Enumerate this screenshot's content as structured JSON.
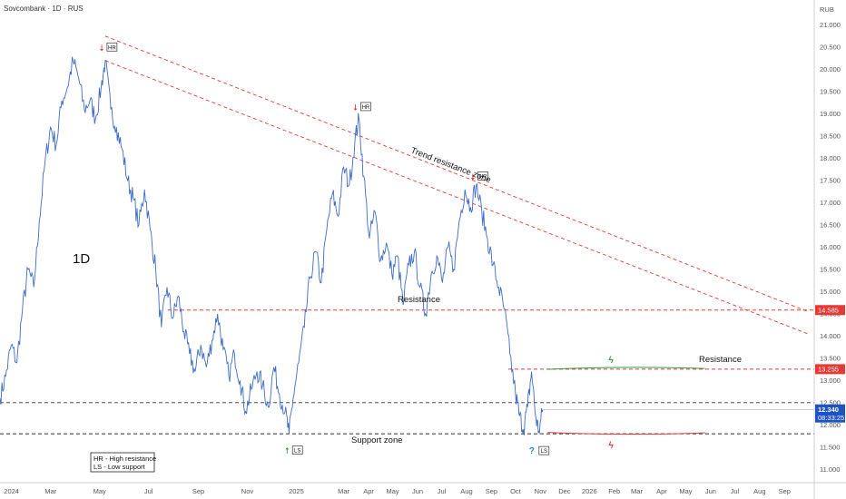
{
  "header": {
    "title": "Sovcombank · 1D · RUS",
    "currency": "RUB"
  },
  "timeframe_label": "1D",
  "legend": {
    "hr": "HR - High resistance",
    "ls": "LS - Low support"
  },
  "markers": {
    "hr_label": "HR",
    "ls_label": "LS",
    "hr_arrow": "⭣",
    "ls_arrow": "⭡",
    "question": "?",
    "bolt": "ϟ"
  },
  "annotations": {
    "trend_zone": "Trend resistance zone",
    "resistance_mid": "Resistance",
    "resistance_right": "Resistance",
    "support_zone": "Support zone"
  },
  "price_tags": {
    "level_14585": "14.585",
    "level_13255": "13.255",
    "current_price": "12.340",
    "countdown": "08:33:25"
  },
  "colors": {
    "price_line": "#3f6cc6",
    "resistance_dashed": "#e53935",
    "support_dashed": "#333333",
    "green_arrow": "#2e9e40",
    "red_arrow": "#e53935",
    "current_price_tag": "#1e53c4",
    "question_mark": "#1e88e5"
  },
  "chart_data": {
    "type": "line",
    "title": "Sovcombank · 1D · RUS",
    "ylabel": "RUB",
    "ylim": [
      10.7,
      21.4
    ],
    "y_ticks": [
      11.0,
      11.5,
      12.0,
      12.5,
      13.0,
      13.5,
      14.0,
      14.5,
      15.0,
      15.5,
      16.0,
      16.5,
      17.0,
      17.5,
      18.0,
      18.5,
      19.0,
      19.5,
      20.0,
      20.5,
      21.0
    ],
    "y_tick_labels": [
      "11.000",
      "11.500",
      "12.000",
      "12.500",
      "13.000",
      "13.500",
      "14.000",
      "14.500",
      "15.000",
      "15.500",
      "16.000",
      "16.500",
      "17.000",
      "17.500",
      "18.000",
      "18.500",
      "19.000",
      "19.500",
      "20.000",
      "20.500",
      "21.000"
    ],
    "x_tick_labels": [
      "2024",
      "Mar",
      "May",
      "Jul",
      "Sep",
      "Nov",
      "2025",
      "Mar",
      "Apr",
      "May",
      "Jun",
      "Jul",
      "Aug",
      "Sep",
      "Oct",
      "Nov",
      "Dec",
      "2026",
      "Feb",
      "Mar",
      "Apr",
      "May",
      "Jun",
      "Jul",
      "Aug",
      "Sep"
    ],
    "x_tick_dates": [
      "2024-01-01",
      "2024-03-01",
      "2024-05-01",
      "2024-07-01",
      "2024-09-01",
      "2024-11-01",
      "2025-01-01",
      "2025-03-01",
      "2025-04-01",
      "2025-05-01",
      "2025-06-01",
      "2025-07-01",
      "2025-08-01",
      "2025-09-01",
      "2025-10-01",
      "2025-11-01",
      "2025-12-01",
      "2026-01-01",
      "2026-02-01",
      "2026-03-01",
      "2026-04-01",
      "2026-05-01",
      "2026-06-01",
      "2026-07-01",
      "2026-08-01",
      "2026-09-01"
    ],
    "xlim": [
      "2023-12-29",
      "2026-10-08"
    ],
    "series": [
      {
        "values": [
          [
            "2023-12-29",
            12.6
          ],
          [
            "2024-01-05",
            13.1
          ],
          [
            "2024-01-12",
            13.8
          ],
          [
            "2024-01-19",
            13.4
          ],
          [
            "2024-01-26",
            14.6
          ],
          [
            "2024-02-02",
            15.5
          ],
          [
            "2024-02-09",
            15.1
          ],
          [
            "2024-02-16",
            16.6
          ],
          [
            "2024-02-23",
            17.9
          ],
          [
            "2024-03-01",
            18.7
          ],
          [
            "2024-03-08",
            18.3
          ],
          [
            "2024-03-15",
            19.3
          ],
          [
            "2024-03-22",
            19.6
          ],
          [
            "2024-03-29",
            20.2
          ],
          [
            "2024-04-05",
            19.8
          ],
          [
            "2024-04-12",
            19.1
          ],
          [
            "2024-04-19",
            19.3
          ],
          [
            "2024-04-26",
            18.9
          ],
          [
            "2024-05-03",
            19.6
          ],
          [
            "2024-05-08",
            20.2
          ],
          [
            "2024-05-15",
            19.1
          ],
          [
            "2024-05-22",
            18.7
          ],
          [
            "2024-05-29",
            18.2
          ],
          [
            "2024-06-05",
            17.5
          ],
          [
            "2024-06-12",
            17.1
          ],
          [
            "2024-06-19",
            16.5
          ],
          [
            "2024-06-26",
            17.3
          ],
          [
            "2024-07-03",
            16.4
          ],
          [
            "2024-07-10",
            15.5
          ],
          [
            "2024-07-17",
            14.2
          ],
          [
            "2024-07-24",
            15.1
          ],
          [
            "2024-07-31",
            14.4
          ],
          [
            "2024-08-07",
            14.9
          ],
          [
            "2024-08-14",
            14.1
          ],
          [
            "2024-08-21",
            13.6
          ],
          [
            "2024-08-28",
            13.2
          ],
          [
            "2024-09-04",
            13.8
          ],
          [
            "2024-09-11",
            13.3
          ],
          [
            "2024-09-18",
            13.9
          ],
          [
            "2024-09-25",
            14.5
          ],
          [
            "2024-10-02",
            13.7
          ],
          [
            "2024-10-09",
            13.1
          ],
          [
            "2024-10-16",
            13.6
          ],
          [
            "2024-10-23",
            13.0
          ],
          [
            "2024-10-30",
            12.3
          ],
          [
            "2024-11-06",
            12.8
          ],
          [
            "2024-11-13",
            13.2
          ],
          [
            "2024-11-20",
            12.9
          ],
          [
            "2024-11-27",
            12.4
          ],
          [
            "2024-12-04",
            13.3
          ],
          [
            "2024-12-11",
            12.7
          ],
          [
            "2024-12-18",
            12.3
          ],
          [
            "2024-12-23",
            11.8
          ],
          [
            "2024-12-28",
            12.6
          ],
          [
            "2025-01-04",
            13.4
          ],
          [
            "2025-01-11",
            14.2
          ],
          [
            "2025-01-18",
            15.3
          ],
          [
            "2025-01-25",
            15.9
          ],
          [
            "2025-02-01",
            15.2
          ],
          [
            "2025-02-08",
            16.4
          ],
          [
            "2025-02-15",
            17.2
          ],
          [
            "2025-02-22",
            16.7
          ],
          [
            "2025-03-01",
            17.8
          ],
          [
            "2025-03-08",
            17.4
          ],
          [
            "2025-03-15",
            18.4
          ],
          [
            "2025-03-20",
            18.9
          ],
          [
            "2025-03-26",
            17.6
          ],
          [
            "2025-04-02",
            16.2
          ],
          [
            "2025-04-09",
            16.8
          ],
          [
            "2025-04-16",
            15.7
          ],
          [
            "2025-04-23",
            16.1
          ],
          [
            "2025-04-30",
            15.4
          ],
          [
            "2025-05-07",
            15.8
          ],
          [
            "2025-05-14",
            14.7
          ],
          [
            "2025-05-21",
            15.6
          ],
          [
            "2025-05-28",
            15.9
          ],
          [
            "2025-06-04",
            15.1
          ],
          [
            "2025-06-11",
            14.5
          ],
          [
            "2025-06-18",
            15.4
          ],
          [
            "2025-06-25",
            15.8
          ],
          [
            "2025-07-02",
            15.2
          ],
          [
            "2025-07-09",
            16.0
          ],
          [
            "2025-07-16",
            15.5
          ],
          [
            "2025-07-23",
            16.6
          ],
          [
            "2025-07-30",
            17.3
          ],
          [
            "2025-08-06",
            16.9
          ],
          [
            "2025-08-13",
            17.4
          ],
          [
            "2025-08-20",
            16.8
          ],
          [
            "2025-08-27",
            16.2
          ],
          [
            "2025-09-03",
            15.6
          ],
          [
            "2025-09-10",
            15.1
          ],
          [
            "2025-09-17",
            14.6
          ],
          [
            "2025-09-24",
            13.6
          ],
          [
            "2025-10-01",
            12.7
          ],
          [
            "2025-10-06",
            12.2
          ],
          [
            "2025-10-11",
            11.9
          ],
          [
            "2025-10-16",
            12.4
          ],
          [
            "2025-10-21",
            13.2
          ],
          [
            "2025-10-26",
            12.2
          ],
          [
            "2025-10-30",
            11.85
          ],
          [
            "2025-11-04",
            12.34
          ]
        ]
      }
    ],
    "levels": [
      {
        "value": 14.585,
        "style": "dashed",
        "color": "red"
      },
      {
        "value": 13.255,
        "style": "dashed",
        "color": "red"
      },
      {
        "value": 12.5,
        "style": "dashed",
        "color": "black"
      },
      {
        "value": 11.8,
        "style": "dashed",
        "color": "black"
      }
    ],
    "trend_lines": [
      {
        "from": [
          "2024-05-08",
          20.75
        ],
        "to": [
          "2026-09-30",
          14.55
        ]
      },
      {
        "from": [
          "2024-05-08",
          20.2
        ],
        "to": [
          "2026-09-30",
          14.05
        ]
      }
    ],
    "current_price": 12.34,
    "grid": false
  }
}
